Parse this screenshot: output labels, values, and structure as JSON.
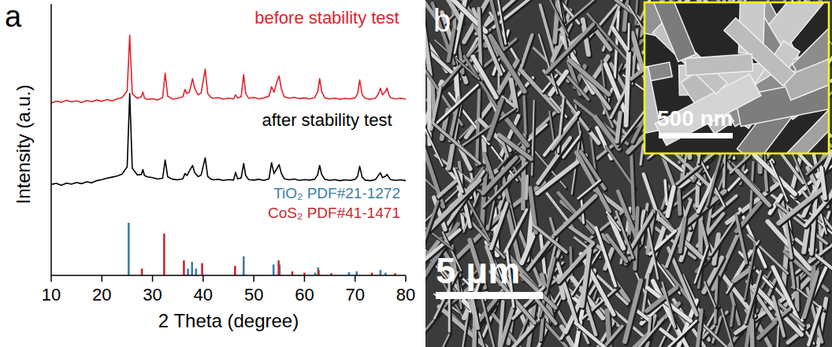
{
  "chart_data": {
    "type": "line",
    "panel_label": "a",
    "x_label": "2 Theta (degree)",
    "y_label": "Intensity (a.u.)",
    "xlim": [
      10,
      80
    ],
    "xticks": [
      10,
      20,
      30,
      40,
      50,
      60,
      70,
      80
    ],
    "ylim": [
      0,
      100
    ],
    "tick_labels": "x",
    "grid": false,
    "series": [
      {
        "name": "before stability test",
        "type": "line",
        "color": "#e0242c",
        "x": [
          10,
          11,
          12,
          13,
          14,
          15,
          16,
          17,
          18,
          19,
          20,
          21,
          22,
          23,
          24,
          25,
          25.5,
          26,
          27,
          27.8,
          28.1,
          28.4,
          29,
          30,
          31,
          32,
          32.5,
          33,
          34,
          35,
          36,
          36.4,
          36.8,
          37.3,
          37.9,
          38.3,
          39,
          39.6,
          40.4,
          40.9,
          41.5,
          42,
          43,
          44,
          45,
          46,
          46.4,
          46.8,
          47.5,
          48,
          48.4,
          49,
          50,
          51,
          52,
          53,
          53.5,
          54,
          54.6,
          55,
          55.4,
          56,
          57,
          58,
          59,
          60,
          61,
          62,
          62.6,
          63,
          63.4,
          64,
          65,
          66,
          67,
          68,
          69,
          70,
          70.5,
          70.9,
          71.4,
          72,
          73,
          74,
          74.6,
          75,
          75.4,
          76,
          76.3,
          76.7,
          77,
          78,
          79,
          80
        ],
        "values": [
          63.5,
          64.2,
          63.8,
          64.5,
          63.9,
          64.3,
          63.7,
          64.4,
          64.0,
          64.6,
          64.1,
          64.8,
          64.3,
          65.0,
          65.5,
          68,
          88.5,
          67,
          65.2,
          65.8,
          67.5,
          65.4,
          64.8,
          65.1,
          64.6,
          65.5,
          74.5,
          66,
          64.9,
          65.3,
          65.8,
          68.5,
          67,
          67.5,
          72.5,
          69,
          66.5,
          67.2,
          76,
          67,
          65.6,
          65.2,
          65.5,
          64.9,
          65.3,
          65.0,
          66.5,
          65.4,
          65.8,
          74,
          67,
          65.2,
          65.6,
          65.0,
          65.4,
          66.0,
          69.5,
          67.5,
          71.5,
          73.5,
          69,
          65.8,
          65.3,
          65.6,
          65.1,
          65.4,
          65.0,
          65.5,
          67.5,
          72.5,
          67.8,
          65.4,
          65.0,
          65.3,
          64.9,
          65.2,
          65.0,
          65.4,
          67,
          72,
          66.5,
          65.2,
          64.9,
          65.3,
          66.8,
          69,
          66.5,
          67.8,
          69,
          66.4,
          65.5,
          65.0,
          65.3,
          64.9
        ]
      },
      {
        "name": "after stability test",
        "type": "line",
        "color": "#000000",
        "x": [
          10,
          11,
          12,
          13,
          14,
          15,
          16,
          17,
          18,
          19,
          20,
          21,
          22,
          23,
          24,
          25,
          25.5,
          26,
          27,
          27.8,
          28.1,
          28.4,
          29,
          30,
          31,
          32,
          32.5,
          33,
          34,
          35,
          36,
          36.4,
          36.8,
          37.3,
          37.9,
          38.3,
          39,
          39.6,
          40.4,
          40.9,
          41.5,
          42,
          43,
          44,
          45,
          46,
          46.4,
          46.8,
          47.5,
          48,
          48.4,
          49,
          50,
          51,
          52,
          53,
          53.5,
          54,
          54.6,
          55,
          55.4,
          56,
          57,
          58,
          59,
          60,
          61,
          62,
          62.6,
          63,
          63.4,
          64,
          65,
          66,
          67,
          68,
          69,
          70,
          70.5,
          70.9,
          71.4,
          72,
          73,
          74,
          74.6,
          75,
          75.4,
          76,
          76.3,
          76.7,
          77,
          78,
          79,
          80
        ],
        "values": [
          33.5,
          33.9,
          33.2,
          34.0,
          33.6,
          34.2,
          33.8,
          34.5,
          34.1,
          34.9,
          35.3,
          35.8,
          36.2,
          36.6,
          37.3,
          40,
          67,
          39.5,
          37.0,
          37.2,
          39.0,
          36.8,
          36.3,
          36.0,
          35.5,
          35.8,
          42.5,
          36.3,
          35.4,
          35.2,
          35.6,
          37.5,
          36.8,
          38.5,
          40.5,
          38,
          36.4,
          37.0,
          43.3,
          36.5,
          35.5,
          35.2,
          35.4,
          35.0,
          35.3,
          35.1,
          38.0,
          35.6,
          35.9,
          41.2,
          36.8,
          35.3,
          35.1,
          35.4,
          35.0,
          35.6,
          41.5,
          37.5,
          39.5,
          40.8,
          37.8,
          35.6,
          35.2,
          35.5,
          35.0,
          35.3,
          35.1,
          35.4,
          37.0,
          40.5,
          37.2,
          35.4,
          35.0,
          35.3,
          34.9,
          35.2,
          35.0,
          35.4,
          36.5,
          40.2,
          36.2,
          35.1,
          34.9,
          35.3,
          36.8,
          37.8,
          36.0,
          36.5,
          37.2,
          36.0,
          35.3,
          35.0,
          35.2,
          34.9
        ]
      },
      {
        "name": "TiO₂ PDF#21-1272",
        "type": "bar",
        "color": "#3d7ea6",
        "x": [
          25.3,
          37.0,
          37.8,
          38.6,
          48.0,
          53.9,
          55.1,
          62.1,
          62.7,
          68.8,
          70.3,
          75.0,
          76.0
        ],
        "values": [
          19.4,
          2.5,
          5,
          2.5,
          7,
          4,
          4,
          1,
          3,
          1.2,
          1.5,
          2,
          1
        ]
      },
      {
        "name": "CoS₂ PDF#41-1471",
        "type": "bar",
        "color": "#c8282e",
        "x": [
          27.9,
          32.3,
          36.2,
          39.8,
          46.3,
          54.9,
          57.6,
          60.0,
          62.8,
          65.3,
          73.3,
          77.9
        ],
        "values": [
          2.5,
          15.4,
          5.5,
          4.5,
          3.5,
          5.5,
          1.5,
          1,
          2,
          0.8,
          1,
          0.8
        ]
      }
    ]
  },
  "image_panel": {
    "panel_label": "b",
    "scale_bar": "5 μm",
    "inset_scale_bar": "500 nm"
  }
}
